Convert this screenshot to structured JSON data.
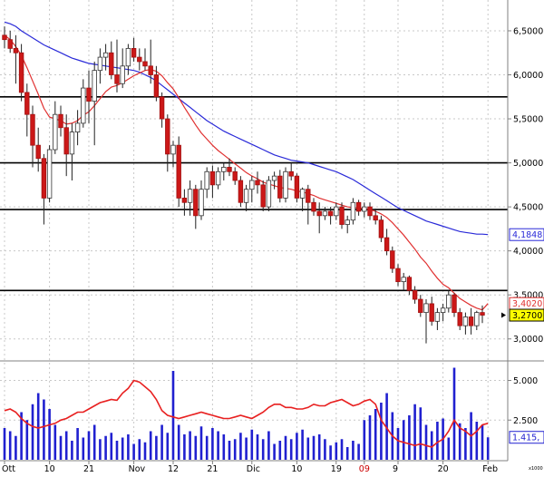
{
  "chart_data": [
    {
      "type": "candlestick",
      "panel": "price",
      "y_ticks": [
        "6,5000",
        "6,0000",
        "5,5000",
        "5,0000",
        "4,5000",
        "4,0000",
        "3,5000",
        "3,0000"
      ],
      "y_tick_values": [
        6.5,
        6.0,
        5.5,
        5.0,
        4.5,
        4.0,
        3.5,
        3.0
      ],
      "ylim": [
        2.75,
        6.85
      ],
      "x_ticks": [
        "Ott",
        "10",
        "21",
        "Nov",
        "12",
        "21",
        "Dic",
        "10",
        "19",
        "09",
        "9",
        "20",
        "Feb"
      ],
      "x_tick_colors": [
        "#000000",
        "#000000",
        "#000000",
        "#000000",
        "#000000",
        "#000000",
        "#000000",
        "#000000",
        "#000000",
        "#cc0000",
        "#000000",
        "#000000",
        "#000000"
      ],
      "x_tick_index": [
        0,
        8,
        15,
        23,
        30,
        37,
        44,
        52,
        59,
        64,
        70,
        78,
        86
      ],
      "horizontal_levels": [
        5.75,
        5.0,
        4.47,
        3.55
      ],
      "current_price": "3,2700",
      "current_price_value": 3.27,
      "ma_fast_label": "3,4020",
      "ma_fast_value": 3.402,
      "ma_slow_label": "4,1848",
      "ma_slow_value": 4.1848,
      "candles": [
        [
          6.45,
          6.55,
          6.3,
          6.4
        ],
        [
          6.4,
          6.5,
          6.25,
          6.3
        ],
        [
          6.3,
          6.45,
          5.9,
          6.25
        ],
        [
          6.25,
          6.35,
          5.7,
          5.8
        ],
        [
          5.8,
          5.9,
          5.3,
          5.55
        ],
        [
          5.55,
          5.65,
          4.95,
          5.2
        ],
        [
          5.2,
          5.4,
          4.9,
          5.05
        ],
        [
          5.05,
          5.1,
          4.3,
          4.6
        ],
        [
          4.6,
          5.2,
          4.55,
          5.15
        ],
        [
          5.15,
          5.7,
          5.1,
          5.55
        ],
        [
          5.55,
          5.65,
          5.3,
          5.4
        ],
        [
          5.4,
          5.55,
          4.85,
          5.1
        ],
        [
          5.1,
          5.45,
          4.8,
          5.35
        ],
        [
          5.35,
          5.6,
          5.2,
          5.45
        ],
        [
          5.45,
          5.95,
          5.4,
          5.85
        ],
        [
          5.85,
          6.05,
          5.45,
          5.7
        ],
        [
          5.7,
          6.15,
          5.2,
          6.05
        ],
        [
          6.05,
          6.3,
          5.9,
          6.2
        ],
        [
          6.2,
          6.35,
          6.05,
          6.25
        ],
        [
          6.25,
          6.38,
          5.95,
          6.0
        ],
        [
          6.0,
          6.4,
          5.8,
          5.9
        ],
        [
          5.9,
          6.3,
          5.85,
          6.1
        ],
        [
          6.1,
          6.35,
          6.0,
          6.3
        ],
        [
          6.3,
          6.42,
          6.15,
          6.2
        ],
        [
          6.2,
          6.3,
          6.05,
          6.15
        ],
        [
          6.15,
          6.3,
          6.05,
          6.1
        ],
        [
          6.1,
          6.4,
          5.9,
          6.0
        ],
        [
          6.0,
          6.1,
          5.7,
          5.75
        ],
        [
          5.75,
          5.8,
          5.4,
          5.5
        ],
        [
          5.5,
          5.55,
          4.9,
          5.1
        ],
        [
          5.1,
          5.25,
          4.95,
          5.2
        ],
        [
          5.2,
          5.3,
          4.5,
          4.6
        ],
        [
          4.6,
          4.7,
          4.4,
          4.55
        ],
        [
          4.55,
          4.8,
          4.4,
          4.7
        ],
        [
          4.7,
          4.75,
          4.25,
          4.4
        ],
        [
          4.4,
          4.8,
          4.35,
          4.7
        ],
        [
          4.7,
          4.95,
          4.6,
          4.9
        ],
        [
          4.9,
          4.97,
          4.6,
          4.75
        ],
        [
          4.75,
          4.95,
          4.7,
          4.9
        ],
        [
          4.9,
          5.0,
          4.8,
          4.95
        ],
        [
          4.95,
          5.05,
          4.85,
          4.9
        ],
        [
          4.9,
          4.95,
          4.75,
          4.8
        ],
        [
          4.8,
          4.85,
          4.5,
          4.55
        ],
        [
          4.55,
          4.75,
          4.45,
          4.7
        ],
        [
          4.7,
          4.85,
          4.55,
          4.8
        ],
        [
          4.8,
          4.9,
          4.65,
          4.75
        ],
        [
          4.75,
          4.8,
          4.45,
          4.5
        ],
        [
          4.5,
          4.85,
          4.45,
          4.8
        ],
        [
          4.8,
          4.9,
          4.7,
          4.85
        ],
        [
          4.85,
          4.92,
          4.55,
          4.6
        ],
        [
          4.6,
          4.95,
          4.55,
          4.9
        ],
        [
          4.9,
          5.0,
          4.8,
          4.85
        ],
        [
          4.85,
          4.88,
          4.55,
          4.6
        ],
        [
          4.6,
          4.72,
          4.45,
          4.7
        ],
        [
          4.7,
          4.75,
          4.3,
          4.55
        ],
        [
          4.55,
          4.6,
          4.4,
          4.45
        ],
        [
          4.45,
          4.55,
          4.2,
          4.4
        ],
        [
          4.4,
          4.5,
          4.35,
          4.45
        ],
        [
          4.45,
          4.5,
          4.3,
          4.4
        ],
        [
          4.4,
          4.55,
          4.35,
          4.5
        ],
        [
          4.5,
          4.55,
          4.25,
          4.3
        ],
        [
          4.3,
          4.4,
          4.2,
          4.35
        ],
        [
          4.35,
          4.6,
          4.3,
          4.55
        ],
        [
          4.55,
          4.58,
          4.4,
          4.45
        ],
        [
          4.45,
          4.55,
          4.38,
          4.5
        ],
        [
          4.5,
          4.55,
          4.35,
          4.4
        ],
        [
          4.4,
          4.48,
          4.3,
          4.35
        ],
        [
          4.35,
          4.4,
          4.1,
          4.15
        ],
        [
          4.15,
          4.25,
          3.95,
          4.0
        ],
        [
          4.0,
          4.05,
          3.75,
          3.8
        ],
        [
          3.8,
          3.85,
          3.6,
          3.65
        ],
        [
          3.65,
          3.75,
          3.55,
          3.7
        ],
        [
          3.7,
          3.72,
          3.5,
          3.55
        ],
        [
          3.55,
          3.6,
          3.4,
          3.45
        ],
        [
          3.45,
          3.5,
          3.25,
          3.3
        ],
        [
          3.3,
          3.45,
          2.95,
          3.4
        ],
        [
          3.4,
          3.48,
          3.15,
          3.2
        ],
        [
          3.2,
          3.35,
          3.1,
          3.3
        ],
        [
          3.3,
          3.4,
          3.2,
          3.35
        ],
        [
          3.35,
          3.55,
          3.3,
          3.5
        ],
        [
          3.5,
          3.52,
          3.25,
          3.3
        ],
        [
          3.3,
          3.35,
          3.1,
          3.15
        ],
        [
          3.15,
          3.3,
          3.05,
          3.25
        ],
        [
          3.25,
          3.35,
          3.05,
          3.15
        ],
        [
          3.15,
          3.32,
          3.1,
          3.3
        ],
        [
          3.3,
          3.38,
          3.18,
          3.27
        ]
      ],
      "ma_fast": [
        6.45,
        6.4,
        6.32,
        6.22,
        6.08,
        5.93,
        5.78,
        5.62,
        5.52,
        5.5,
        5.48,
        5.44,
        5.45,
        5.48,
        5.54,
        5.58,
        5.65,
        5.73,
        5.81,
        5.86,
        5.88,
        5.91,
        5.95,
        5.99,
        6.02,
        6.05,
        6.06,
        6.04,
        5.99,
        5.91,
        5.84,
        5.74,
        5.63,
        5.53,
        5.43,
        5.34,
        5.27,
        5.2,
        5.14,
        5.09,
        5.04,
        4.99,
        4.94,
        4.89,
        4.85,
        4.82,
        4.78,
        4.76,
        4.74,
        4.72,
        4.71,
        4.7,
        4.68,
        4.67,
        4.65,
        4.63,
        4.6,
        4.58,
        4.56,
        4.54,
        4.52,
        4.5,
        4.49,
        4.49,
        4.48,
        4.47,
        4.45,
        4.42,
        4.38,
        4.32,
        4.25,
        4.18,
        4.1,
        4.02,
        3.93,
        3.86,
        3.77,
        3.69,
        3.62,
        3.58,
        3.52,
        3.46,
        3.42,
        3.38,
        3.35,
        3.33,
        3.402
      ],
      "ma_slow": [
        6.6,
        6.58,
        6.55,
        6.5,
        6.46,
        6.42,
        6.38,
        6.34,
        6.31,
        6.28,
        6.25,
        6.22,
        6.19,
        6.17,
        6.15,
        6.13,
        6.12,
        6.11,
        6.1,
        6.09,
        6.08,
        6.07,
        6.06,
        6.05,
        6.03,
        6.0,
        5.97,
        5.93,
        5.88,
        5.83,
        5.78,
        5.73,
        5.68,
        5.63,
        5.58,
        5.53,
        5.48,
        5.44,
        5.4,
        5.36,
        5.33,
        5.3,
        5.27,
        5.24,
        5.21,
        5.18,
        5.15,
        5.12,
        5.09,
        5.07,
        5.05,
        5.03,
        5.02,
        5.01,
        5.0,
        4.98,
        4.96,
        4.94,
        4.92,
        4.9,
        4.87,
        4.84,
        4.81,
        4.77,
        4.73,
        4.69,
        4.65,
        4.61,
        4.57,
        4.53,
        4.49,
        4.46,
        4.43,
        4.4,
        4.37,
        4.34,
        4.32,
        4.3,
        4.28,
        4.26,
        4.24,
        4.22,
        4.21,
        4.2,
        4.19,
        4.19,
        4.1848
      ]
    },
    {
      "type": "volume",
      "panel": "volume",
      "y_ticks": [
        "5.000",
        "2.500"
      ],
      "y_tick_values": [
        5000,
        2500
      ],
      "ylim": [
        0,
        6000
      ],
      "axis_unit": "x1000",
      "current_volume": "1.415,",
      "current_volume_value": 1415,
      "volumes": [
        2000,
        1800,
        1500,
        3000,
        2500,
        3500,
        4200,
        3800,
        3200,
        2200,
        1500,
        1800,
        1200,
        2000,
        1400,
        1800,
        2200,
        1300,
        1500,
        1700,
        1200,
        1400,
        1600,
        1000,
        1300,
        1100,
        1800,
        1500,
        2200,
        1700,
        5600,
        2200,
        1600,
        1800,
        1500,
        2100,
        1500,
        2000,
        1800,
        1600,
        1200,
        1300,
        1700,
        1400,
        1900,
        1600,
        1300,
        1800,
        1000,
        1200,
        1500,
        1300,
        1700,
        1900,
        1400,
        1500,
        1600,
        1300,
        900,
        1100,
        1300,
        800,
        1200,
        1000,
        2500,
        2800,
        3200,
        3600,
        4200,
        3000,
        2000,
        2500,
        2800,
        3500,
        3300,
        2200,
        1800,
        2400,
        2600,
        1400,
        5800,
        2300,
        2000,
        3000,
        2400,
        2200,
        1415
      ],
      "vol_ma": [
        3100,
        3200,
        3000,
        2600,
        2300,
        2100,
        2000,
        2100,
        2200,
        2300,
        2500,
        2600,
        2800,
        3000,
        3000,
        3200,
        3400,
        3600,
        3700,
        3800,
        3750,
        4200,
        4500,
        5000,
        4900,
        4600,
        4300,
        3800,
        3100,
        2800,
        2700,
        2600,
        2700,
        2800,
        2900,
        3000,
        2900,
        2800,
        2700,
        2600,
        2600,
        2700,
        2800,
        2700,
        2600,
        2800,
        3000,
        3300,
        3500,
        3500,
        3300,
        3300,
        3200,
        3200,
        3300,
        3500,
        3400,
        3400,
        3600,
        3700,
        3800,
        3600,
        3400,
        3500,
        3700,
        3800,
        3500,
        2500,
        2000,
        1500,
        1200,
        1100,
        1000,
        900,
        1000,
        900,
        800,
        1100,
        1300,
        1800,
        2500,
        2000,
        1800,
        1500,
        1800,
        2200,
        2300
      ]
    }
  ]
}
